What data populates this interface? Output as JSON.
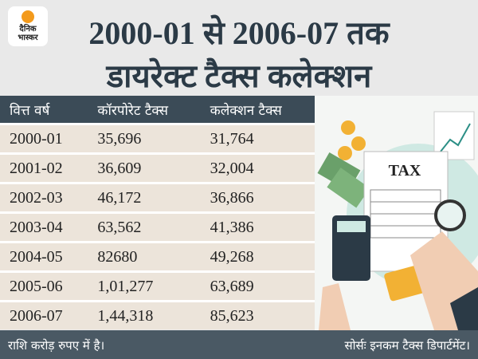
{
  "logo": {
    "line1": "दैनिक",
    "line2": "भास्कर"
  },
  "header": {
    "title_line1": "2000-01 से 2006-07 तक",
    "title_line2": "डायरेक्ट टैक्स कलेक्शन"
  },
  "table": {
    "columns": [
      "वित्त वर्ष",
      "कॉरपोरेट टैक्स",
      "कलेक्शन टैक्स"
    ],
    "rows": [
      [
        "2000-01",
        "35,696",
        "31,764"
      ],
      [
        "2001-02",
        "36,609",
        "32,004"
      ],
      [
        "2002-03",
        "46,172",
        "36,866"
      ],
      [
        "2003-04",
        "63,562",
        "41,386"
      ],
      [
        "2004-05",
        "82680",
        "49,268"
      ],
      [
        "2005-06",
        "1,01,277",
        "63,689"
      ],
      [
        "2006-07",
        "1,44,318",
        "85,623"
      ]
    ]
  },
  "illustration": {
    "label": "TAX"
  },
  "footer": {
    "note": "राशि करोड़ रुपए में है।",
    "source": "सोर्सः इनकम टैक्स डिपार्टमेंट।"
  }
}
